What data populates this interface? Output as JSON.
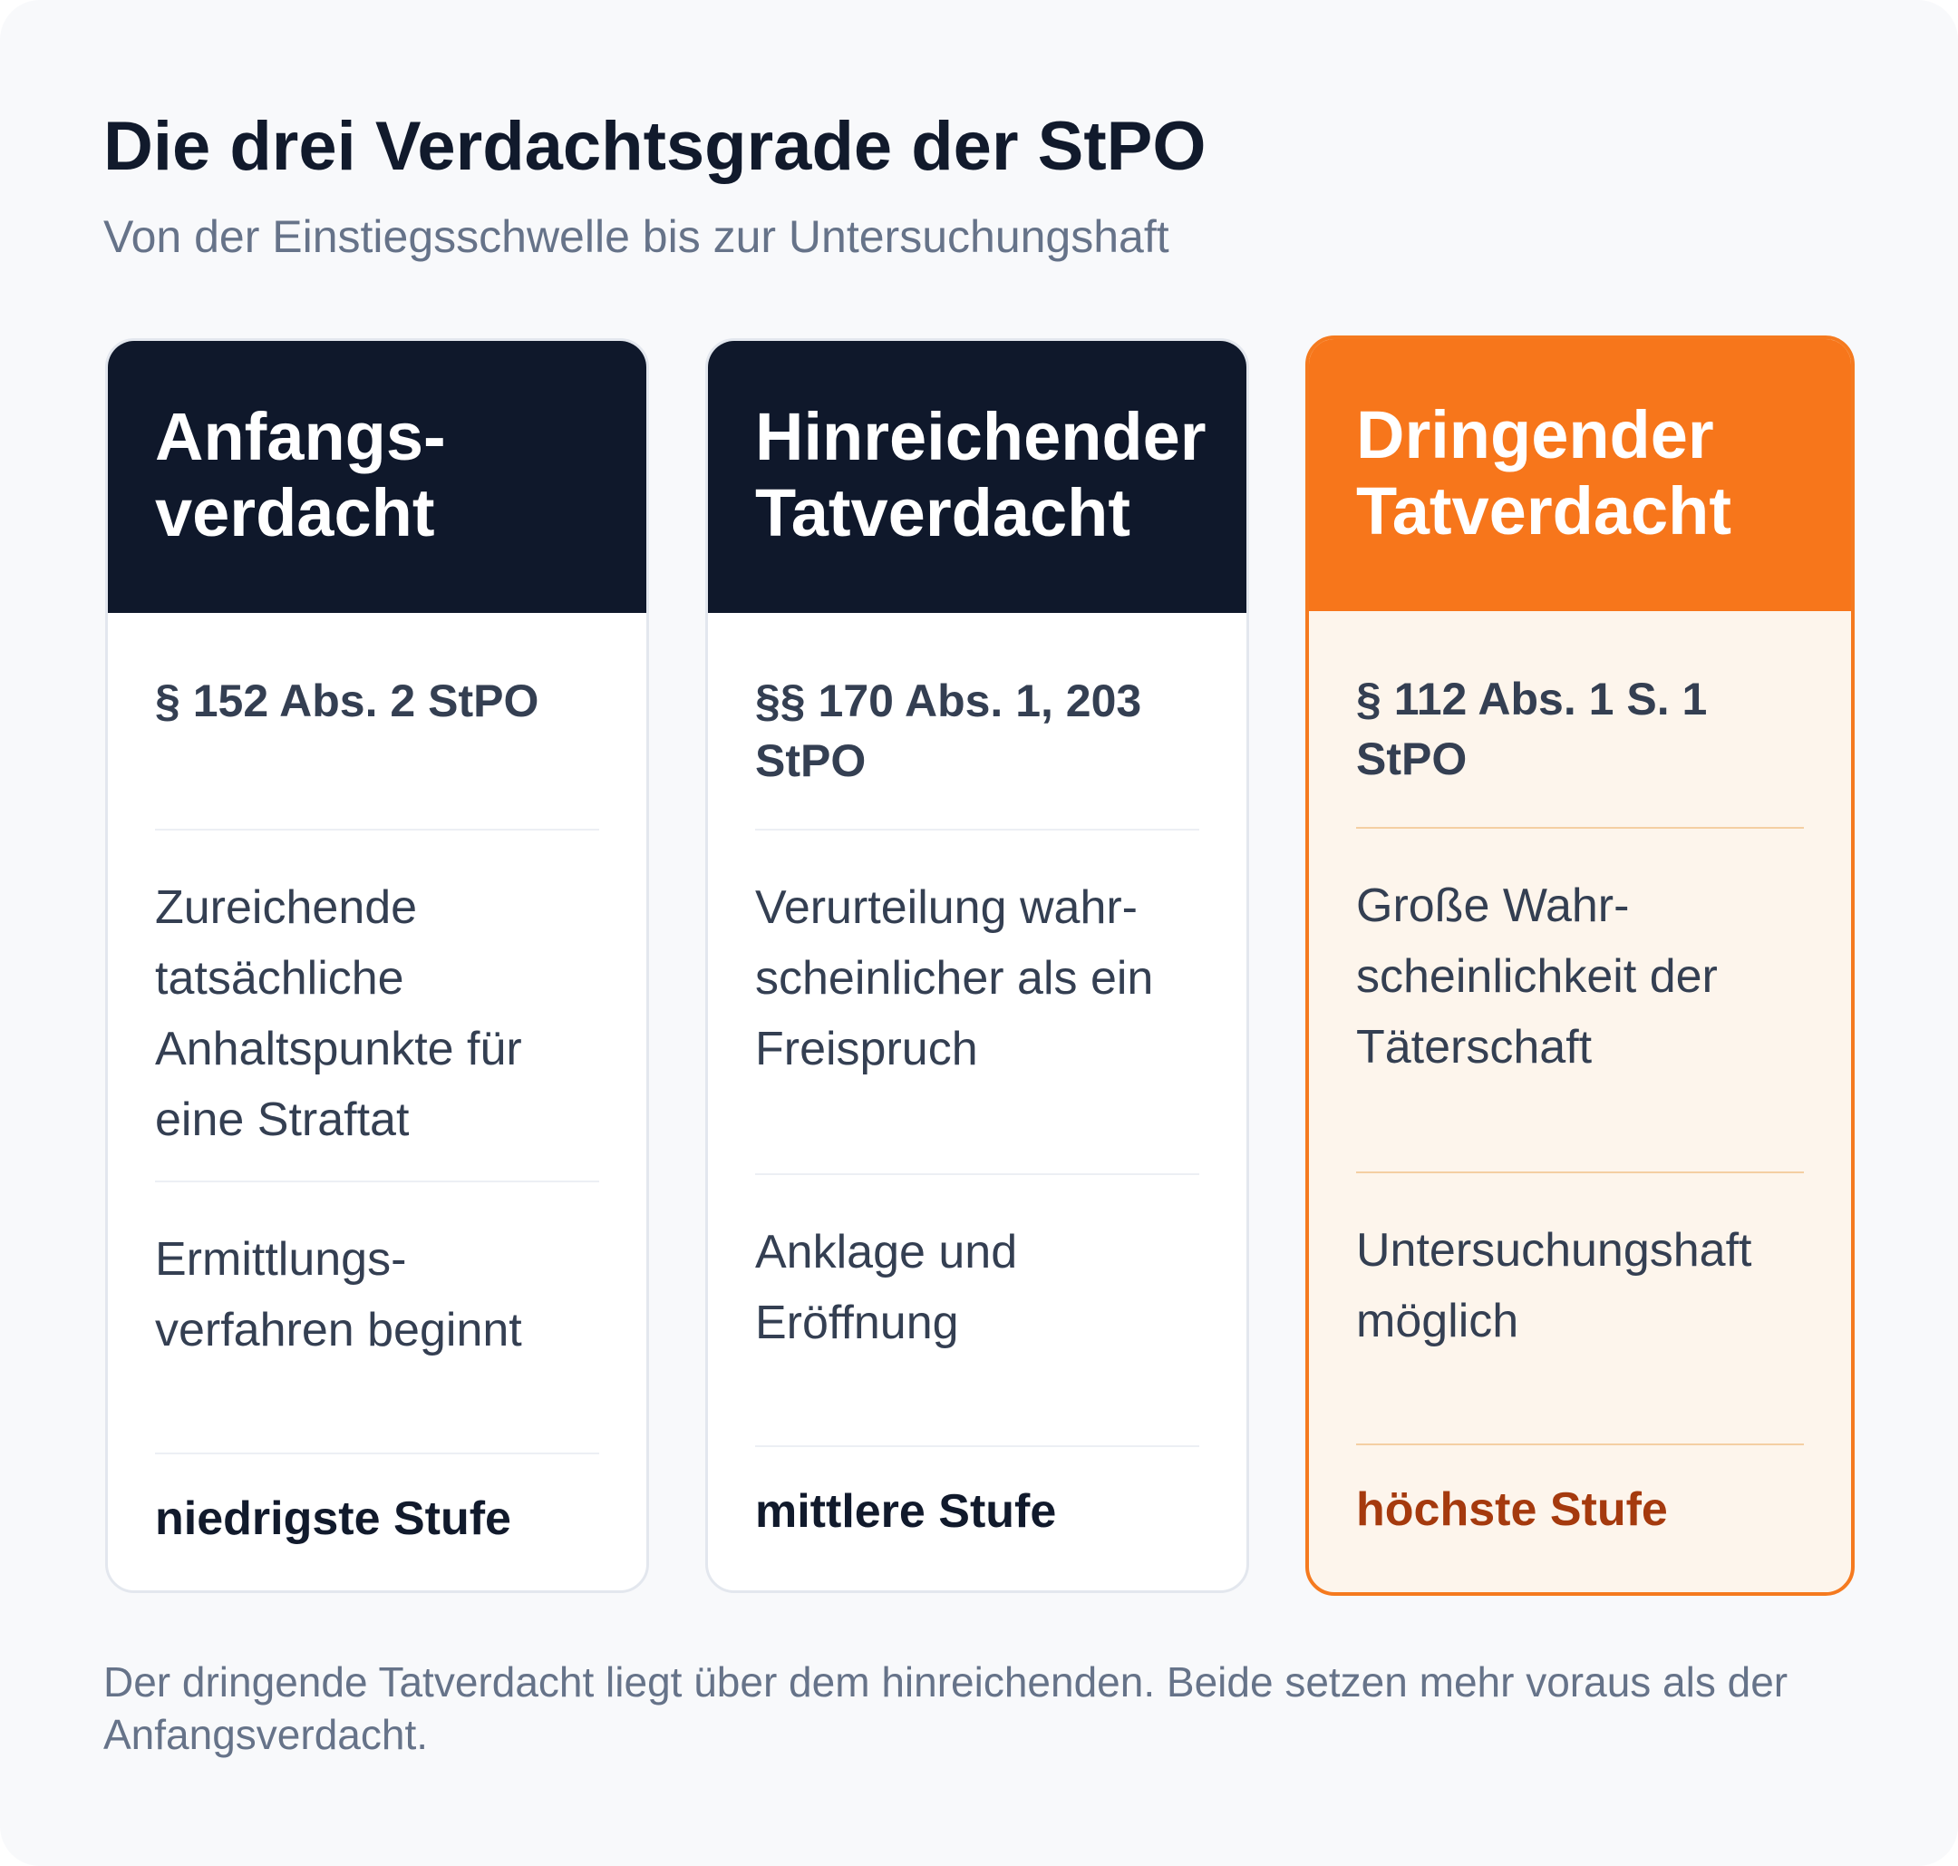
{
  "header": {
    "title": "Die drei Verdachtsgrade der StPO",
    "subtitle": "Von der Einstiegsschwelle bis zur Untersuchungshaft"
  },
  "cards": [
    {
      "name": "Anfangs-\nverdacht",
      "norm": "§ 152 Abs. 2 StPO",
      "description": "Zureichende tatsächliche Anhaltspunkte für eine Straftat",
      "consequence": "Ermittlungs-\nverfahren beginnt",
      "level": "niedrigste Stufe",
      "head_color": "#0f182b"
    },
    {
      "name": "Hinreichender Tatverdacht",
      "norm": "§§ 170 Abs. 1, 203 StPO",
      "description": "Verurteilung wahr-\nscheinlicher als ein Freispruch",
      "consequence": "Anklage und Eröffnung",
      "level": "mittlere Stufe",
      "head_color": "#0f182b"
    },
    {
      "name": "Dringender Tatverdacht",
      "norm": "§ 112 Abs. 1 S. 1 StPO",
      "description": "Große Wahr-\nscheinlichkeit der Täterschaft",
      "consequence": "Untersuchungshaft möglich",
      "level": "höchste Stufe",
      "head_color": "#f7761b",
      "highlighted": true
    }
  ],
  "footnote": "Der dringende Tatverdacht liegt über dem hinreichenden. Beide setzen mehr voraus als der Anfangsverdacht."
}
